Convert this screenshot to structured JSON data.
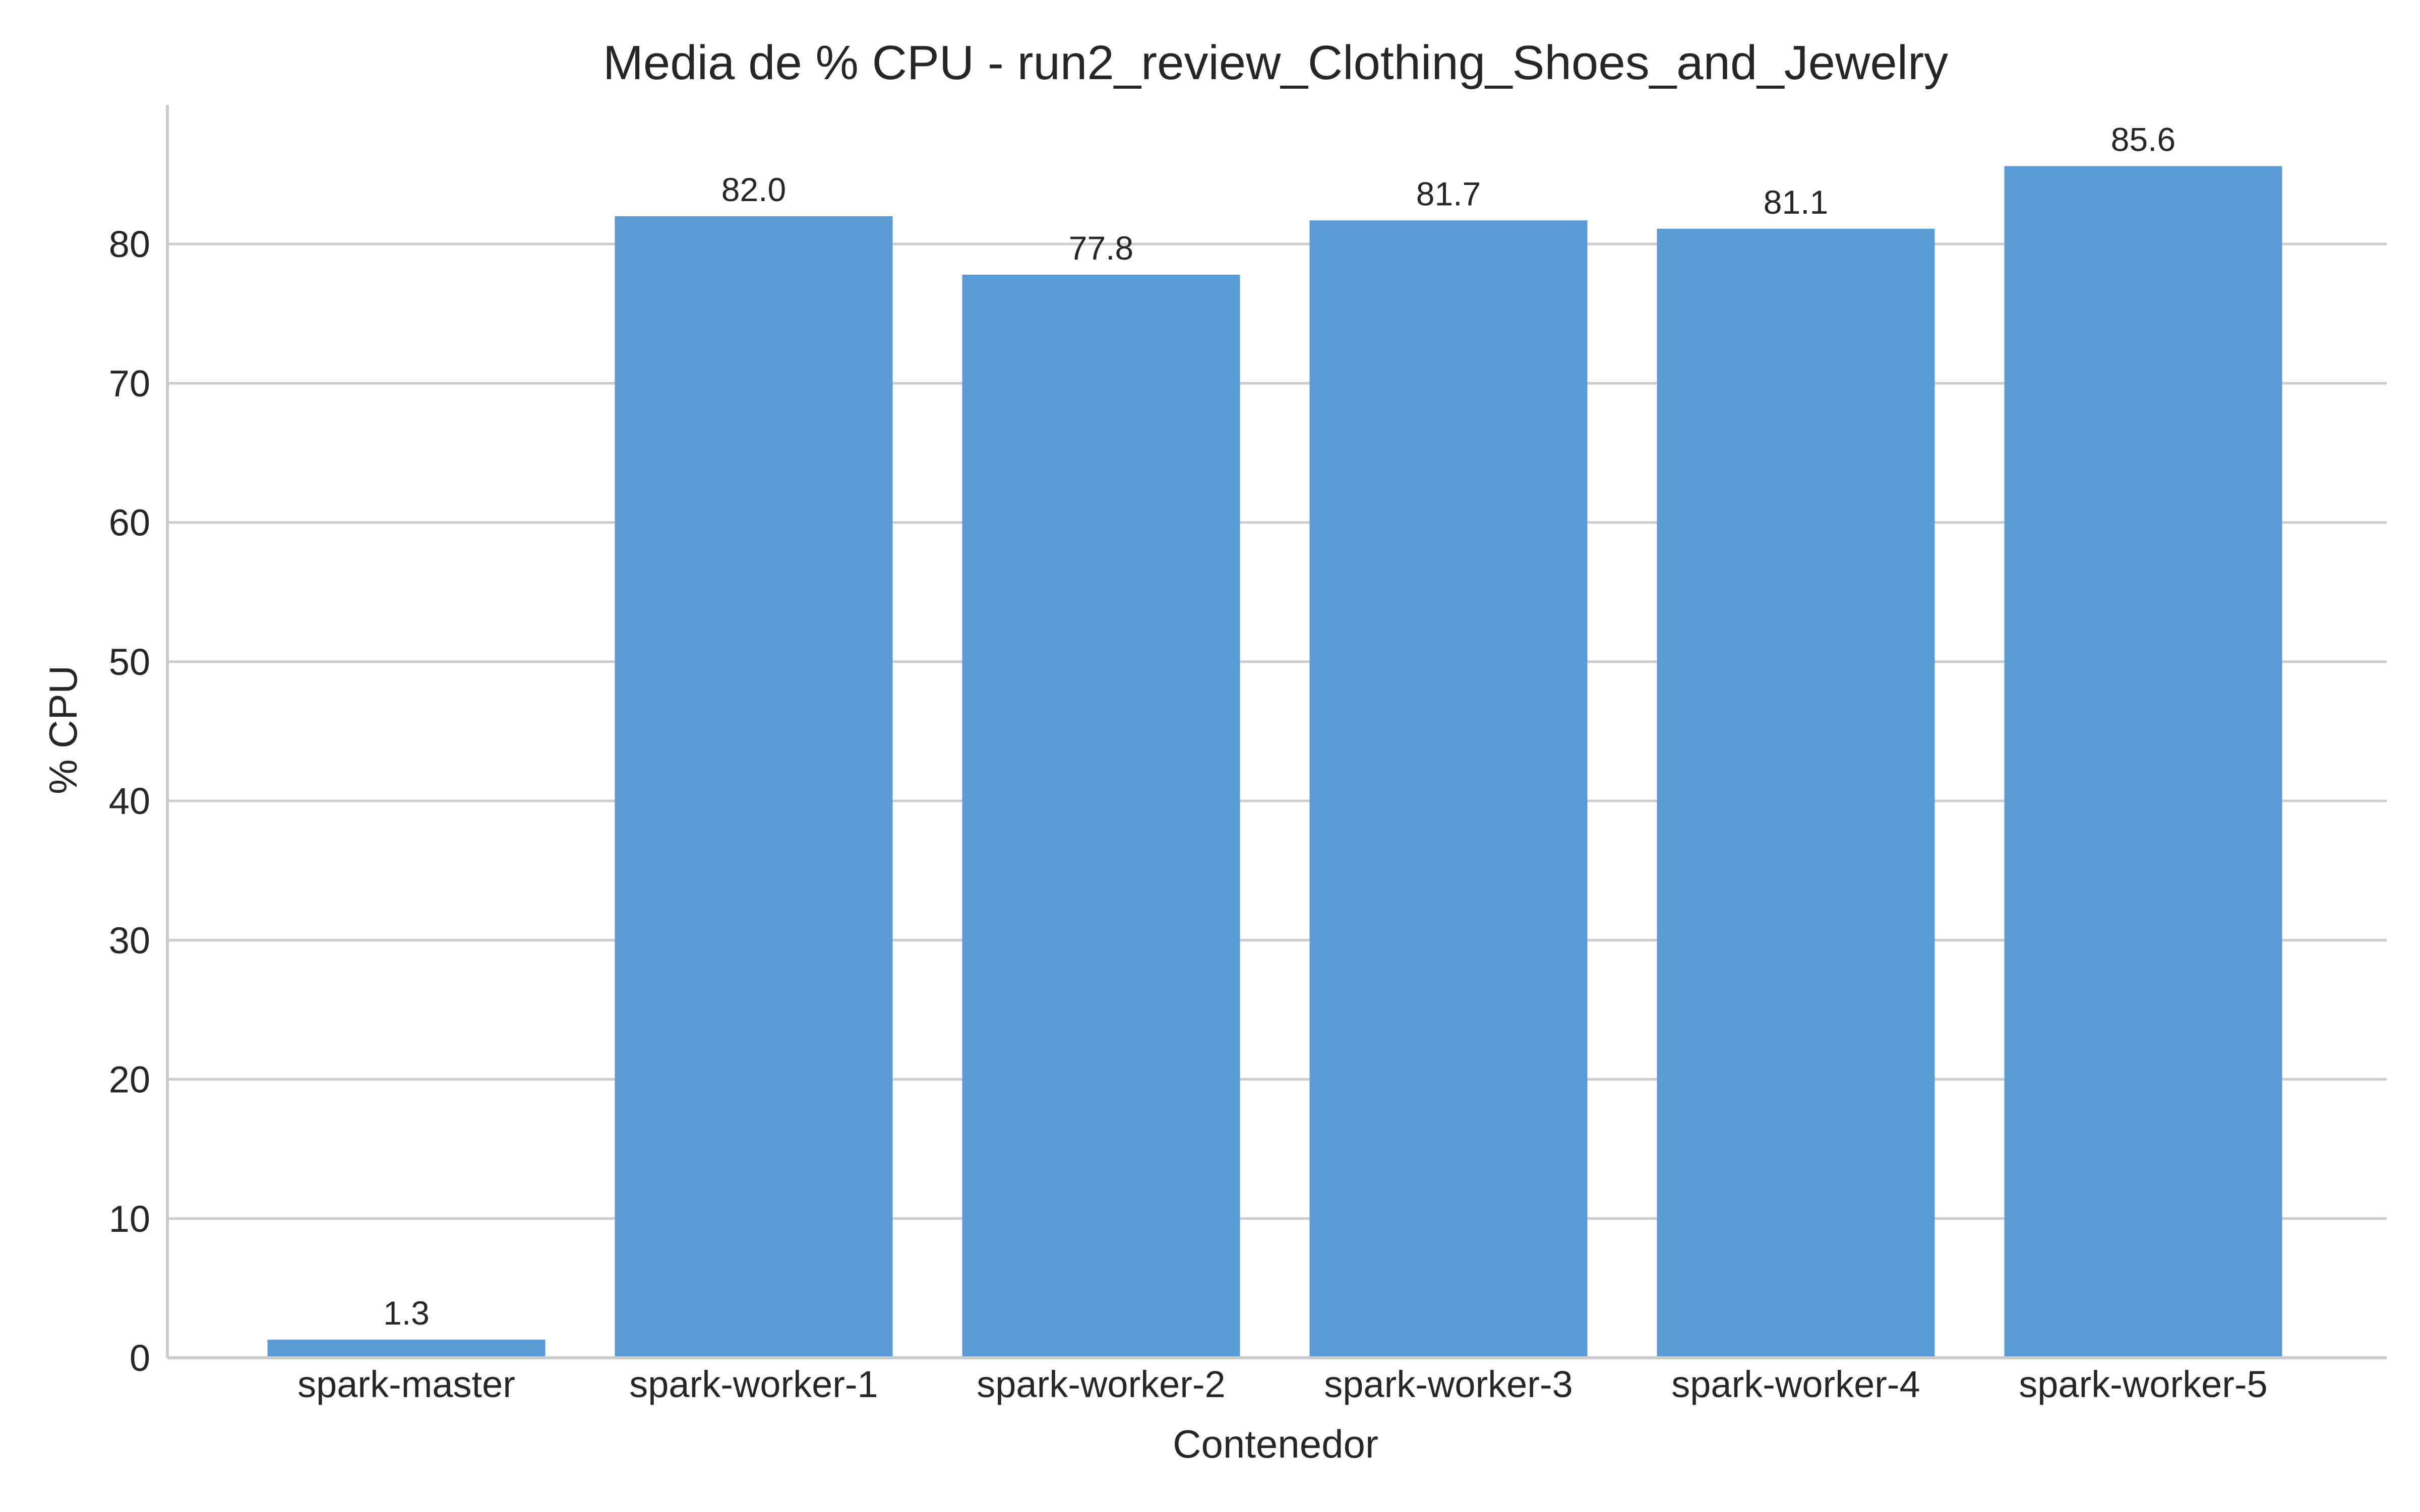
{
  "chart_data": {
    "type": "bar",
    "title": "Media de % CPU - run2_review_Clothing_Shoes_and_Jewelry",
    "xlabel": "Contenedor",
    "ylabel": "% CPU",
    "categories": [
      "spark-master",
      "spark-worker-1",
      "spark-worker-2",
      "spark-worker-3",
      "spark-worker-4",
      "spark-worker-5"
    ],
    "values": [
      1.3,
      82.0,
      77.8,
      81.7,
      81.1,
      85.6
    ],
    "value_labels": [
      "1.3",
      "82.0",
      "77.8",
      "81.7",
      "81.1",
      "85.6"
    ],
    "ylim": [
      0,
      90
    ],
    "yticks": [
      0,
      10,
      20,
      30,
      40,
      50,
      60,
      70,
      80
    ],
    "grid": "horizontal",
    "bar_color": "#5b9bd5"
  }
}
